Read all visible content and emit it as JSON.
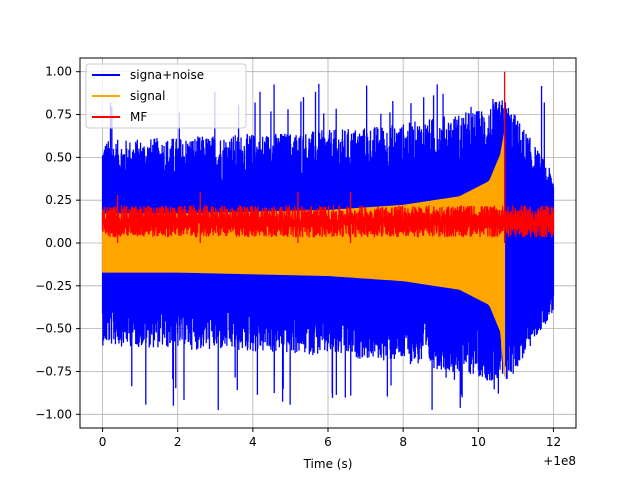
{
  "chart_data": {
    "type": "line",
    "title": "",
    "xlabel": "Time (s)",
    "ylabel": "",
    "x_offset_label": "+1e8",
    "xlim": [
      -0.6,
      12.6
    ],
    "ylim": [
      -1.08,
      1.08
    ],
    "xticks": [
      0,
      2,
      4,
      6,
      8,
      10,
      12
    ],
    "xtick_labels": [
      "0",
      "2",
      "4",
      "6",
      "8",
      "10",
      "12"
    ],
    "yticks": [
      -1.0,
      -0.75,
      -0.5,
      -0.25,
      0.0,
      0.25,
      0.5,
      0.75,
      1.0
    ],
    "ytick_labels": [
      "−1.00",
      "−0.75",
      "−0.50",
      "−0.25",
      "0.00",
      "0.25",
      "0.50",
      "0.75",
      "1.00"
    ],
    "grid": true,
    "legend_position": "top-left",
    "series": [
      {
        "name": "signa+noise",
        "color": "#0000ff",
        "x_range": [
          0,
          12
        ],
        "envelope_upper": [
          [
            0,
            0.6
          ],
          [
            2,
            0.62
          ],
          [
            4,
            0.64
          ],
          [
            6,
            0.66
          ],
          [
            8,
            0.7
          ],
          [
            10,
            0.78
          ],
          [
            10.7,
            0.85
          ],
          [
            12,
            0.4
          ]
        ],
        "envelope_lower": [
          [
            0,
            -0.6
          ],
          [
            2,
            -0.62
          ],
          [
            4,
            -0.64
          ],
          [
            6,
            -0.66
          ],
          [
            8,
            -0.7
          ],
          [
            10,
            -0.78
          ],
          [
            10.7,
            -0.85
          ],
          [
            12,
            -0.4
          ]
        ],
        "max": 0.93,
        "min": -0.98
      },
      {
        "name": "signal",
        "color": "#ffa500",
        "x_range": [
          0,
          10.7
        ],
        "envelope_upper": [
          [
            0,
            0.17
          ],
          [
            2,
            0.17
          ],
          [
            4,
            0.18
          ],
          [
            6,
            0.19
          ],
          [
            8,
            0.22
          ],
          [
            9.5,
            0.27
          ],
          [
            10.3,
            0.36
          ],
          [
            10.6,
            0.52
          ],
          [
            10.7,
            0.65
          ]
        ],
        "envelope_lower": [
          [
            0,
            -0.17
          ],
          [
            2,
            -0.17
          ],
          [
            4,
            -0.18
          ],
          [
            6,
            -0.19
          ],
          [
            8,
            -0.22
          ],
          [
            9.5,
            -0.27
          ],
          [
            10.3,
            -0.36
          ],
          [
            10.6,
            -0.52
          ],
          [
            10.7,
            -0.78
          ]
        ]
      },
      {
        "name": "MF",
        "color": "#ff0000",
        "x_range": [
          0,
          12
        ],
        "baseline_min": 0.0,
        "baseline_max": 0.22,
        "spikes": [
          [
            0.4,
            0.28
          ],
          [
            2.6,
            0.3
          ],
          [
            5.2,
            0.3
          ],
          [
            6.6,
            0.3
          ],
          [
            10.7,
            1.0
          ]
        ]
      }
    ]
  }
}
